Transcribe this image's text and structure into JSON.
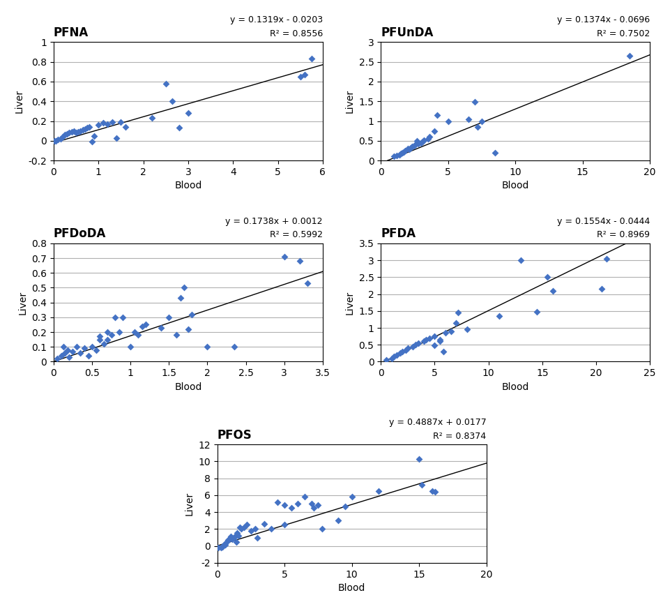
{
  "chart_data": [
    {
      "type": "scatter",
      "title": "PFNA",
      "annotations": [
        "y = 0.1319x - 0.0203",
        "R² = 0.8556"
      ],
      "xlabel": "Blood",
      "ylabel": "Liver",
      "x": [
        0.02,
        0.05,
        0.1,
        0.15,
        0.2,
        0.25,
        0.3,
        0.35,
        0.4,
        0.45,
        0.5,
        0.55,
        0.6,
        0.65,
        0.7,
        0.75,
        0.8,
        0.85,
        0.9,
        1.0,
        1.1,
        1.2,
        1.3,
        1.4,
        1.5,
        1.6,
        2.2,
        2.5,
        2.65,
        2.8,
        3.0,
        5.5,
        5.6,
        5.75
      ],
      "values": [
        0.0,
        0.0,
        0.01,
        0.02,
        0.04,
        0.06,
        0.07,
        0.08,
        0.09,
        0.1,
        0.08,
        0.09,
        0.1,
        0.11,
        0.12,
        0.13,
        0.14,
        -0.01,
        0.05,
        0.16,
        0.18,
        0.17,
        0.19,
        0.03,
        0.19,
        0.14,
        0.23,
        0.58,
        0.4,
        0.13,
        0.28,
        0.65,
        0.67,
        0.83
      ],
      "trendline": {
        "slope": 0.1319,
        "intercept": -0.0203,
        "color": "black"
      },
      "color": "#4472C4",
      "marker": "diamond",
      "xlim": [
        0,
        6
      ],
      "ylim": [
        -0.2,
        1
      ],
      "xticks": [
        0,
        1,
        2,
        3,
        4,
        5,
        6
      ],
      "yticks": [
        -0.2,
        0,
        0.2,
        0.4,
        0.6,
        0.8,
        1
      ],
      "grid": "y"
    },
    {
      "type": "scatter",
      "title": "PFUnDA",
      "annotations": [
        "y = 0.1374x - 0.0696",
        "R² = 0.7502"
      ],
      "xlabel": "Blood",
      "ylabel": "Liver",
      "x": [
        1.0,
        1.2,
        1.4,
        1.5,
        1.6,
        1.7,
        1.8,
        2.0,
        2.1,
        2.2,
        2.3,
        2.5,
        2.6,
        2.7,
        2.8,
        3.0,
        3.1,
        3.2,
        3.5,
        3.6,
        4.0,
        4.2,
        5.0,
        6.5,
        7.0,
        7.2,
        7.5,
        8.5,
        18.5
      ],
      "values": [
        0.1,
        0.12,
        0.15,
        0.18,
        0.2,
        0.22,
        0.25,
        0.3,
        0.28,
        0.32,
        0.35,
        0.38,
        0.4,
        0.5,
        0.42,
        0.45,
        0.48,
        0.52,
        0.55,
        0.6,
        0.75,
        1.15,
        1.0,
        1.05,
        1.48,
        0.85,
        1.0,
        0.2,
        2.65
      ],
      "trendline": {
        "slope": 0.1374,
        "intercept": -0.0696,
        "color": "black"
      },
      "color": "#4472C4",
      "marker": "diamond",
      "xlim": [
        0,
        20
      ],
      "ylim": [
        0,
        3
      ],
      "xticks": [
        0,
        5,
        10,
        15,
        20
      ],
      "yticks": [
        0,
        0.5,
        1,
        1.5,
        2,
        2.5,
        3
      ],
      "grid": "y"
    },
    {
      "type": "scatter",
      "title": "PFDoDA",
      "annotations": [
        "y = 0.1738x + 0.0012",
        "R² = 0.5992"
      ],
      "xlabel": "Blood",
      "ylabel": "Liver",
      "x": [
        0.05,
        0.1,
        0.13,
        0.15,
        0.18,
        0.2,
        0.25,
        0.3,
        0.35,
        0.4,
        0.45,
        0.5,
        0.55,
        0.6,
        0.6,
        0.65,
        0.7,
        0.7,
        0.75,
        0.8,
        0.85,
        0.9,
        1.0,
        1.05,
        1.1,
        1.15,
        1.2,
        1.4,
        1.5,
        1.6,
        1.65,
        1.7,
        1.75,
        1.8,
        2.0,
        2.35,
        3.0,
        3.2,
        3.3
      ],
      "values": [
        0.02,
        0.04,
        0.1,
        0.06,
        0.08,
        0.03,
        0.07,
        0.1,
        0.06,
        0.09,
        0.04,
        0.1,
        0.08,
        0.15,
        0.17,
        0.12,
        0.2,
        0.15,
        0.18,
        0.3,
        0.2,
        0.3,
        0.1,
        0.2,
        0.18,
        0.24,
        0.25,
        0.23,
        0.3,
        0.18,
        0.43,
        0.5,
        0.22,
        0.32,
        0.1,
        0.1,
        0.71,
        0.68,
        0.53
      ],
      "trendline": {
        "slope": 0.1738,
        "intercept": 0.0012,
        "color": "black"
      },
      "color": "#4472C4",
      "marker": "diamond",
      "xlim": [
        0,
        3.5
      ],
      "ylim": [
        0,
        0.8
      ],
      "xticks": [
        0,
        0.5,
        1,
        1.5,
        2,
        2.5,
        3,
        3.5
      ],
      "yticks": [
        0,
        0.1,
        0.2,
        0.3,
        0.4,
        0.5,
        0.6,
        0.7,
        0.8
      ],
      "grid": "y"
    },
    {
      "type": "scatter",
      "title": "PFDA",
      "annotations": [
        "y = 0.1554x - 0.0444",
        "R² = 0.8969"
      ],
      "xlabel": "Blood",
      "ylabel": "Liver",
      "x": [
        0.5,
        1.0,
        1.2,
        1.5,
        1.8,
        2.0,
        2.3,
        2.5,
        3.0,
        3.2,
        3.5,
        4.0,
        4.2,
        4.5,
        5.0,
        5.0,
        5.5,
        5.5,
        5.8,
        6.0,
        6.5,
        7.0,
        7.2,
        8.0,
        11.0,
        13.0,
        14.5,
        15.5,
        16.0,
        20.5,
        21.0
      ],
      "values": [
        0.05,
        0.1,
        0.15,
        0.2,
        0.25,
        0.3,
        0.35,
        0.4,
        0.45,
        0.5,
        0.55,
        0.6,
        0.65,
        0.7,
        0.48,
        0.75,
        0.6,
        0.65,
        0.3,
        0.85,
        0.9,
        1.15,
        1.45,
        0.95,
        1.35,
        3.0,
        1.47,
        2.5,
        2.1,
        2.15,
        3.05
      ],
      "trendline": {
        "slope": 0.1554,
        "intercept": -0.0444,
        "color": "black"
      },
      "color": "#4472C4",
      "marker": "diamond",
      "xlim": [
        0,
        25
      ],
      "ylim": [
        0,
        3.5
      ],
      "xticks": [
        0,
        5,
        10,
        15,
        20,
        25
      ],
      "yticks": [
        0,
        0.5,
        1,
        1.5,
        2,
        2.5,
        3,
        3.5
      ],
      "grid": "y"
    },
    {
      "type": "scatter",
      "title": "PFOS",
      "annotations": [
        "y = 0.4887x + 0.0177",
        "R² = 0.8374"
      ],
      "xlabel": "Blood",
      "ylabel": "Liver",
      "x": [
        0.1,
        0.3,
        0.4,
        0.5,
        0.6,
        0.7,
        0.8,
        0.9,
        1.0,
        1.1,
        1.2,
        1.3,
        1.4,
        1.5,
        1.6,
        1.7,
        1.8,
        2.0,
        2.2,
        2.5,
        2.8,
        3.0,
        3.5,
        4.0,
        4.5,
        5.0,
        5.0,
        5.5,
        6.0,
        6.5,
        7.0,
        7.2,
        7.5,
        7.8,
        9.0,
        9.5,
        10.0,
        12.0,
        15.0,
        15.2,
        16.0,
        16.2
      ],
      "values": [
        -0.2,
        -0.2,
        -0.1,
        0.1,
        0.1,
        0.5,
        0.7,
        0.8,
        1.1,
        0.8,
        1.0,
        1.1,
        0.5,
        1.5,
        1.2,
        2.2,
        2.0,
        2.2,
        2.5,
        1.8,
        2.0,
        1.0,
        2.6,
        2.0,
        5.2,
        2.5,
        4.8,
        4.5,
        5.0,
        5.8,
        5.0,
        4.5,
        4.8,
        2.0,
        3.0,
        4.7,
        5.8,
        6.5,
        10.3,
        7.2,
        6.5,
        6.4
      ],
      "trendline": {
        "slope": 0.4887,
        "intercept": 0.0177,
        "color": "black"
      },
      "color": "#4472C4",
      "marker": "diamond",
      "xlim": [
        0,
        20
      ],
      "ylim": [
        -2,
        12
      ],
      "xticks": [
        0,
        5,
        10,
        15,
        20
      ],
      "yticks": [
        -2,
        0,
        2,
        4,
        6,
        8,
        10,
        12
      ],
      "grid": "y"
    }
  ]
}
